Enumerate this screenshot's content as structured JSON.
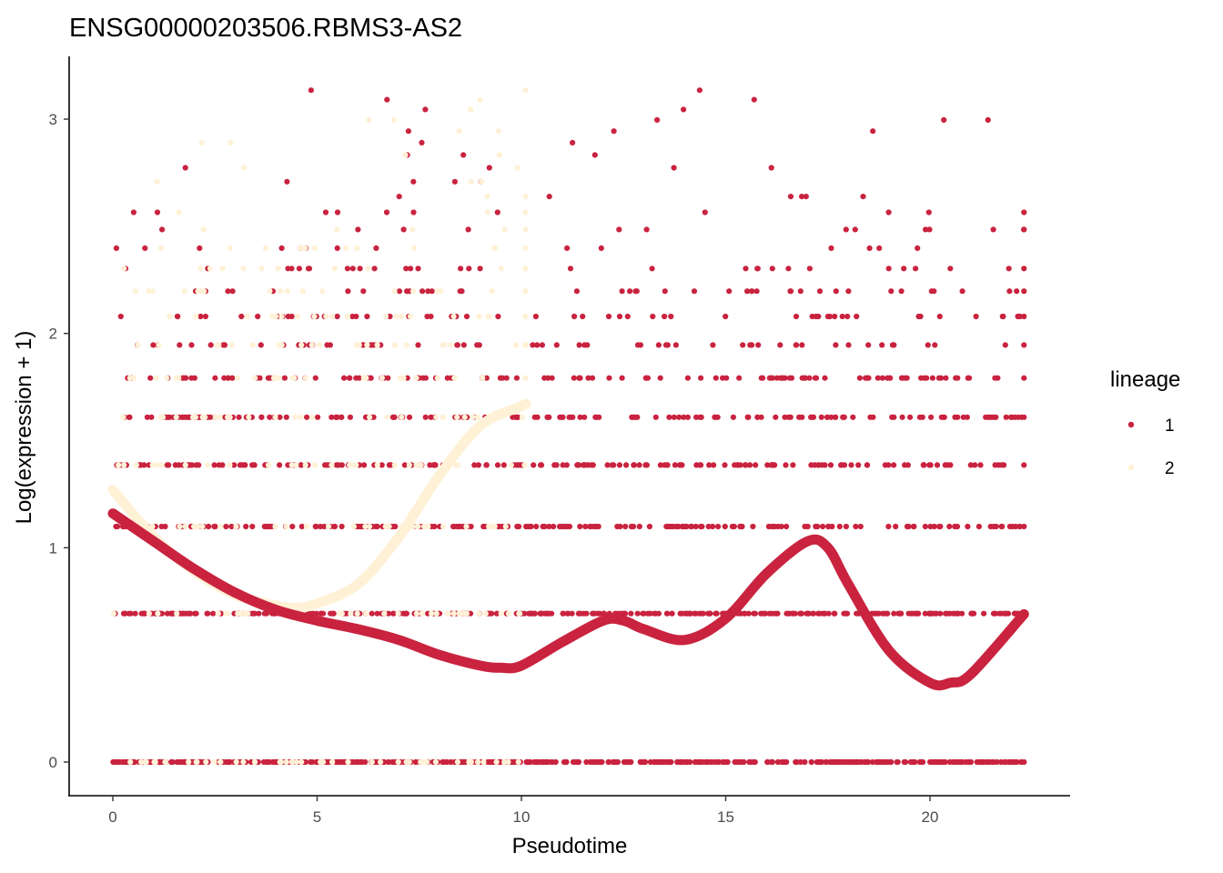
{
  "chart_data": {
    "type": "scatter",
    "title": "ENSG00000203506.RBMS3-AS2",
    "xlabel": "Pseudotime",
    "ylabel": "Log(expression + 1)",
    "xlim": [
      -1.1,
      23.4
    ],
    "ylim": [
      -0.15,
      3.28
    ],
    "x_ticks": [
      0,
      5,
      10,
      15,
      20
    ],
    "y_ticks": [
      0,
      1,
      2,
      3
    ],
    "grid": false,
    "legend": {
      "title": "lineage",
      "position": "right",
      "entries": [
        {
          "label": "1",
          "color": "#C9233F"
        },
        {
          "label": "2",
          "color": "#FFF1D6"
        }
      ]
    },
    "expression_levels": [
      0,
      0.693,
      1.099,
      1.386,
      1.609,
      1.792,
      1.946,
      2.079,
      2.197,
      2.303,
      2.398,
      2.485,
      2.565,
      2.639,
      2.708,
      2.773,
      2.833,
      2.89,
      2.944,
      2.996,
      3.045,
      3.091,
      3.135
    ],
    "series": [
      {
        "name": "1",
        "color": "#C9233F",
        "x_range": [
          0,
          22.3
        ],
        "smooth_x": [
          0,
          1,
          2,
          3,
          4,
          5,
          6,
          7,
          8,
          9,
          9.5,
          10,
          11,
          12,
          12.5,
          13,
          14,
          15,
          16,
          17,
          17.5,
          18,
          19,
          20,
          20.5,
          21,
          22.3
        ],
        "smooth_y": [
          1.16,
          1.03,
          0.9,
          0.79,
          0.71,
          0.66,
          0.62,
          0.57,
          0.5,
          0.45,
          0.44,
          0.45,
          0.56,
          0.66,
          0.66,
          0.62,
          0.57,
          0.67,
          0.88,
          1.03,
          1.0,
          0.83,
          0.52,
          0.37,
          0.37,
          0.41,
          0.69
        ]
      },
      {
        "name": "2",
        "color": "#FFF1D6",
        "x_range": [
          0,
          10.1
        ],
        "smooth_x": [
          0,
          1,
          2,
          3,
          4,
          4.5,
          5,
          6,
          7,
          8,
          9,
          10,
          10.1
        ],
        "smooth_y": [
          1.27,
          1.05,
          0.89,
          0.78,
          0.73,
          0.72,
          0.74,
          0.83,
          1.05,
          1.34,
          1.57,
          1.66,
          1.67
        ]
      }
    ]
  },
  "colors": {
    "lineage1": "#C9233F",
    "lineage2": "#FFF1D6",
    "axis": "#000000",
    "tick_text": "#4d4d4d"
  }
}
